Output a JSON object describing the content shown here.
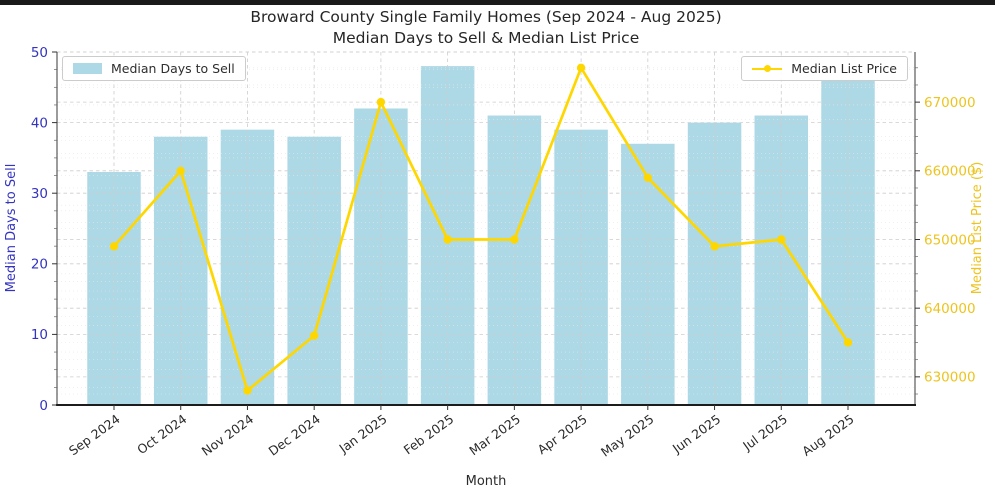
{
  "page": {
    "top_bar_color": "#1a1a1a",
    "background": "#ffffff"
  },
  "chart_data": {
    "type": "bar",
    "title": "Broward County Single Family Homes (Sep 2024 - Aug 2025)",
    "subtitle": "Median Days to Sell & Median List Price",
    "xlabel": "Month",
    "categories": [
      "Sep 2024",
      "Oct 2024",
      "Nov 2024",
      "Dec 2024",
      "Jan 2025",
      "Feb 2025",
      "Mar 2025",
      "Apr 2025",
      "May 2025",
      "Jun 2025",
      "Jul 2025",
      "Aug 2025"
    ],
    "series": [
      {
        "name": "Median Days to Sell",
        "type": "bar",
        "axis": "left",
        "color": "#ADD8E6",
        "values": [
          33,
          38,
          39,
          38,
          42,
          48,
          41,
          39,
          37,
          40,
          41,
          46
        ]
      },
      {
        "name": "Median List Price",
        "type": "line",
        "axis": "right",
        "color": "#FFD700",
        "values": [
          649000,
          660000,
          628000,
          636000,
          670000,
          650000,
          650000,
          675000,
          659000,
          649000,
          650000,
          635000
        ]
      }
    ],
    "left_axis": {
      "label": "Median Days to Sell",
      "color": "#3434c0",
      "min": 0,
      "max": 50,
      "ticks": [
        0,
        10,
        20,
        30,
        40,
        50
      ]
    },
    "right_axis": {
      "label": "Median List Price ($)",
      "color": "#edc41f",
      "min": 625900,
      "max": 677300,
      "ticks": [
        630000,
        640000,
        650000,
        660000,
        670000
      ]
    },
    "legend": {
      "days_label": "Median Days to Sell",
      "price_label": "Median List Price"
    },
    "grid": {
      "on": true,
      "style": "dashed",
      "color": "#cdcdcd"
    }
  }
}
